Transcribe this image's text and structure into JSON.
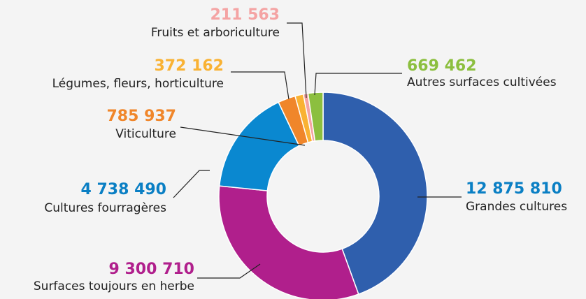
{
  "chart_data": {
    "type": "donut",
    "categories": [
      "Grandes cultures",
      "Surfaces toujours en herbe",
      "Cultures fourragères",
      "Viticulture",
      "Légumes, fleurs, horticulture",
      "Fruits et arboriculture",
      "Autres surfaces cultivées"
    ],
    "values": [
      12875810,
      9300710,
      4738490,
      785937,
      372162,
      211563,
      669462
    ],
    "value_labels": [
      "12 875 810",
      "9 300 710",
      "4 738 490",
      "785 937",
      "372 162",
      "211 563",
      "669 462"
    ],
    "colors": [
      "#2f5fad",
      "#b01f8c",
      "#0a88d0",
      "#f0862a",
      "#f9b233",
      "#f4a3a3",
      "#8cbf3f"
    ],
    "label_colors": [
      "#0a7fc4",
      "#b01f8c",
      "#0a7fc4",
      "#f0862a",
      "#f9b233",
      "#f4a3a3",
      "#8cbf3f"
    ]
  }
}
